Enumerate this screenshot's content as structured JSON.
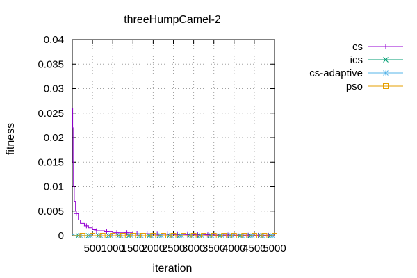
{
  "chart_data": {
    "type": "line",
    "title": "threeHumpCamel-2",
    "xlabel": "iteration",
    "ylabel": "fitness",
    "xlim": [
      0,
      5000
    ],
    "ylim": [
      0,
      0.04
    ],
    "xticks": [
      500,
      1000,
      1500,
      2000,
      2500,
      3000,
      3500,
      4000,
      4500,
      5000
    ],
    "xtick_labels": [
      "500",
      "1000",
      "1500",
      "2000",
      "2500",
      "3000",
      "3500",
      "4000",
      "4500",
      "5000"
    ],
    "yticks": [
      0,
      0.005,
      0.01,
      0.015,
      0.02,
      0.025,
      0.03,
      0.035,
      0.04
    ],
    "ytick_labels": [
      "0",
      "0.005",
      "0.01",
      "0.015",
      "0.02",
      "0.025",
      "0.03",
      "0.035",
      "0.04"
    ],
    "grid": true,
    "legend_position": "right",
    "series": [
      {
        "name": "cs",
        "color": "#9400d3",
        "marker": "plus",
        "x": [
          1,
          10,
          20,
          30,
          50,
          80,
          100,
          150,
          200,
          300,
          400,
          500,
          600,
          800,
          1000,
          1500,
          2000,
          2500,
          3000,
          3500,
          4000,
          4500,
          5000
        ],
        "y": [
          0.026,
          0.022,
          0.015,
          0.01,
          0.007,
          0.005,
          0.0045,
          0.0032,
          0.0025,
          0.002,
          0.0016,
          0.0012,
          0.001,
          0.0008,
          0.0006,
          0.0004,
          0.0003,
          0.00025,
          0.0002,
          0.00015,
          0.0001,
          8e-05,
          5e-05
        ]
      },
      {
        "name": "ics",
        "color": "#009e73",
        "marker": "cross",
        "x": [
          1,
          20,
          50,
          100,
          200,
          500,
          1000,
          1500,
          2000,
          2500,
          3000,
          3500,
          4000,
          4500,
          5000
        ],
        "y": [
          0.0003,
          0.0001,
          5e-05,
          2e-05,
          1e-05,
          0,
          0,
          0,
          0,
          0,
          0,
          0,
          0,
          0,
          0
        ]
      },
      {
        "name": "cs-adaptive",
        "color": "#56b4e9",
        "marker": "star",
        "x": [
          1,
          20,
          50,
          100,
          200,
          500,
          1000,
          1500,
          2000,
          2500,
          3000,
          3500,
          4000,
          4500,
          5000
        ],
        "y": [
          0.0002,
          0.0001,
          5e-05,
          2e-05,
          1e-05,
          0,
          0,
          0,
          0,
          0,
          0,
          0,
          0,
          0,
          0
        ]
      },
      {
        "name": "pso",
        "color": "#e69f00",
        "marker": "square",
        "x": [
          1,
          100,
          200,
          500,
          1000,
          1500,
          2000,
          2500,
          3000,
          3500,
          4000,
          4500,
          5000
        ],
        "y": [
          0,
          0,
          0,
          0,
          0,
          0,
          0,
          0,
          0,
          0,
          0,
          0,
          0
        ]
      }
    ]
  }
}
